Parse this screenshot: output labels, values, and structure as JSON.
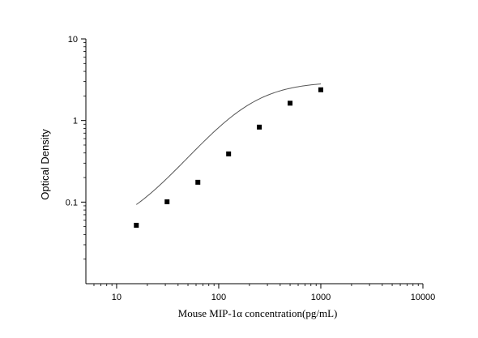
{
  "chart_data": {
    "type": "scatter",
    "title": "",
    "xlabel": "Mouse MIP-1α  concentration(pg/mL)",
    "ylabel": "Optical Density",
    "x_scale": "log",
    "y_scale": "log",
    "xlim": [
      5,
      10000
    ],
    "ylim": [
      0.01,
      10
    ],
    "x_ticks": [
      10,
      100,
      1000,
      10000
    ],
    "x_tick_labels": [
      "10",
      "100",
      "1000",
      "10000"
    ],
    "y_ticks": [
      0.1,
      1,
      10
    ],
    "y_tick_labels": [
      "0.1",
      "1",
      "10"
    ],
    "grid": false,
    "legend": "none",
    "series": [
      {
        "kind": "points",
        "marker": "square",
        "x": [
          15.6,
          31.2,
          62.5,
          125,
          250,
          500,
          1000
        ],
        "y": [
          0.052,
          0.101,
          0.175,
          0.39,
          0.83,
          1.63,
          2.38
        ]
      },
      {
        "kind": "fit-curve",
        "x": [
          15.6,
          1000
        ],
        "model": "4PL",
        "params": {
          "A": 0.04,
          "B": 1.6,
          "C": 190,
          "D": 3.0
        }
      }
    ],
    "colors": {
      "points": "#000000",
      "curve": "#555555",
      "axes": "#000000"
    }
  }
}
